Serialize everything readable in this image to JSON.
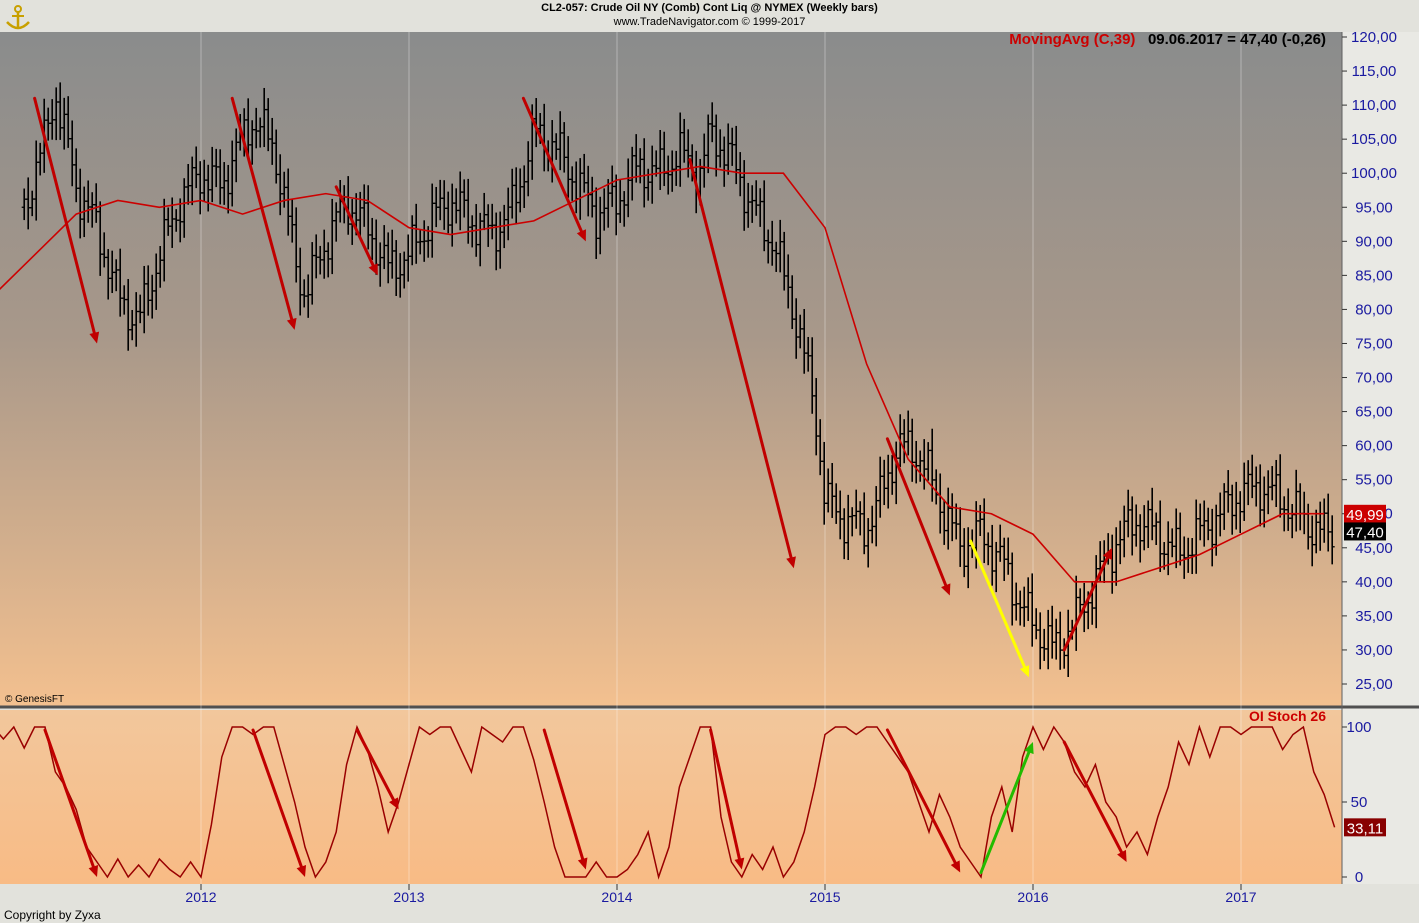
{
  "header": {
    "line1": "CL2-057:  Crude Oil NY (Comb) Cont Liq @ NYMEX  (Weekly bars)",
    "line2": "www.TradeNavigator.com © 1999-2017"
  },
  "indicator": {
    "name": "MovingAvg (C,39)",
    "reading": "09.06.2017 = 47,40 (-0,26)"
  },
  "oscillator": {
    "name": "OI Stoch 26"
  },
  "footer": {
    "copyright": "Copyright by Zyxa",
    "source": "© GenesisFT"
  },
  "colors": {
    "bar": "#000000",
    "moving_avg": "#cc0000",
    "arrow_down": "#c00000",
    "arrow_yellow": "#ffff00",
    "arrow_green": "#22bb00",
    "oscillator": "#990000",
    "axis_text": "#1a1aa0"
  },
  "chart_data": [
    {
      "type": "bar",
      "title": "Crude Oil NY (Comb) Cont Liq @ NYMEX (Weekly bars)",
      "x_ticks": [
        "2012",
        "2013",
        "2014",
        "2015",
        "2016",
        "2017"
      ],
      "y_ticks": [
        "120,00",
        "115,00",
        "110,00",
        "105,00",
        "100,00",
        "95,00",
        "90,00",
        "85,00",
        "80,00",
        "75,00",
        "70,00",
        "65,00",
        "60,00",
        "55,00",
        "50,00",
        "45,00",
        "40,00",
        "35,00",
        "30,00",
        "25,00"
      ],
      "ylim": [
        23,
        122
      ],
      "last_close": "47,40",
      "moving_avg_last": "49,99",
      "close_series": {
        "name": "Weekly close",
        "x": [
          2011.15,
          2011.25,
          2011.3,
          2011.4,
          2011.5,
          2011.6,
          2011.7,
          2011.8,
          2011.9,
          2012.0,
          2012.1,
          2012.15,
          2012.25,
          2012.35,
          2012.45,
          2012.5,
          2012.6,
          2012.7,
          2012.8,
          2012.9,
          2013.0,
          2013.1,
          2013.2,
          2013.3,
          2013.4,
          2013.5,
          2013.6,
          2013.7,
          2013.8,
          2013.9,
          2014.0,
          2014.1,
          2014.2,
          2014.3,
          2014.4,
          2014.45,
          2014.55,
          2014.65,
          2014.75,
          2014.85,
          2014.95,
          2015.0,
          2015.1,
          2015.2,
          2015.25,
          2015.35,
          2015.45,
          2015.55,
          2015.65,
          2015.75,
          2015.85,
          2015.95,
          2016.05,
          2016.1,
          2016.2,
          2016.3,
          2016.4,
          2016.5,
          2016.6,
          2016.7,
          2016.8,
          2016.9,
          2017.0,
          2017.1,
          2017.2,
          2017.3,
          2017.4,
          2017.45
        ],
        "y": [
          95,
          105,
          112,
          98,
          92,
          82,
          78,
          88,
          96,
          100,
          98,
          102,
          108,
          104,
          88,
          82,
          90,
          96,
          92,
          86,
          88,
          93,
          96,
          93,
          91,
          95,
          106,
          104,
          99,
          94,
          96,
          101,
          100,
          103,
          100,
          106,
          102,
          95,
          90,
          80,
          66,
          52,
          49,
          48,
          51,
          60,
          59,
          52,
          45,
          47,
          43,
          36,
          32,
          30,
          34,
          40,
          46,
          49,
          47,
          44,
          47,
          50,
          53,
          54,
          52,
          49,
          47,
          47.4
        ]
      },
      "moving_avg": {
        "name": "MovingAvg (C,39)",
        "x": [
          2011.0,
          2011.2,
          2011.4,
          2011.6,
          2011.8,
          2012.0,
          2012.2,
          2012.4,
          2012.6,
          2012.8,
          2013.0,
          2013.2,
          2013.4,
          2013.6,
          2013.8,
          2014.0,
          2014.2,
          2014.4,
          2014.6,
          2014.8,
          2015.0,
          2015.2,
          2015.4,
          2015.6,
          2015.8,
          2016.0,
          2016.2,
          2016.4,
          2016.6,
          2016.8,
          2017.0,
          2017.2,
          2017.4
        ],
        "y": [
          82,
          88,
          94,
          96,
          95,
          96,
          94,
          96,
          97,
          96,
          92,
          91,
          92,
          93,
          96,
          99,
          100,
          101,
          100,
          100,
          92,
          72,
          58,
          51,
          50,
          47,
          40,
          40,
          42,
          44,
          47,
          50,
          50
        ]
      },
      "arrows": [
        {
          "color": "red",
          "from": [
            2011.2,
            111
          ],
          "to": [
            2011.5,
            75
          ]
        },
        {
          "color": "red",
          "from": [
            2012.15,
            111
          ],
          "to": [
            2012.45,
            77
          ]
        },
        {
          "color": "red",
          "from": [
            2012.65,
            98
          ],
          "to": [
            2012.85,
            85
          ]
        },
        {
          "color": "red",
          "from": [
            2013.55,
            111
          ],
          "to": [
            2013.85,
            90
          ]
        },
        {
          "color": "red",
          "from": [
            2014.35,
            102
          ],
          "to": [
            2014.85,
            42
          ]
        },
        {
          "color": "red",
          "from": [
            2015.3,
            61
          ],
          "to": [
            2015.6,
            38
          ]
        },
        {
          "color": "yellow",
          "from": [
            2015.7,
            46
          ],
          "to": [
            2015.98,
            26
          ]
        },
        {
          "color": "red",
          "from": [
            2016.15,
            30
          ],
          "to": [
            2016.38,
            45
          ]
        }
      ]
    },
    {
      "type": "line",
      "title": "OI Stoch 26",
      "y_ticks": [
        "100",
        "50",
        "0"
      ],
      "ylim": [
        0,
        100
      ],
      "last_value": "33,11",
      "series": {
        "name": "OI Stoch 26",
        "x": [
          2011.0,
          2011.05,
          2011.1,
          2011.15,
          2011.2,
          2011.25,
          2011.3,
          2011.35,
          2011.4,
          2011.45,
          2011.5,
          2011.55,
          2011.6,
          2011.65,
          2011.7,
          2011.75,
          2011.8,
          2011.85,
          2011.9,
          2011.95,
          2012.0,
          2012.05,
          2012.1,
          2012.15,
          2012.2,
          2012.25,
          2012.3,
          2012.35,
          2012.4,
          2012.45,
          2012.5,
          2012.55,
          2012.6,
          2012.65,
          2012.7,
          2012.75,
          2012.8,
          2012.85,
          2012.9,
          2012.95,
          2013.0,
          2013.05,
          2013.1,
          2013.15,
          2013.2,
          2013.25,
          2013.3,
          2013.35,
          2013.4,
          2013.45,
          2013.5,
          2013.55,
          2013.6,
          2013.65,
          2013.7,
          2013.75,
          2013.8,
          2013.85,
          2013.9,
          2013.95,
          2014.0,
          2014.05,
          2014.1,
          2014.15,
          2014.2,
          2014.25,
          2014.3,
          2014.35,
          2014.4,
          2014.45,
          2014.5,
          2014.55,
          2014.6,
          2014.65,
          2014.7,
          2014.75,
          2014.8,
          2014.85,
          2014.9,
          2014.95,
          2015.0,
          2015.05,
          2015.1,
          2015.15,
          2015.2,
          2015.25,
          2015.3,
          2015.35,
          2015.4,
          2015.45,
          2015.5,
          2015.55,
          2015.6,
          2015.65,
          2015.7,
          2015.75,
          2015.8,
          2015.85,
          2015.9,
          2015.95,
          2016.0,
          2016.05,
          2016.1,
          2016.15,
          2016.2,
          2016.25,
          2016.3,
          2016.35,
          2016.4,
          2016.45,
          2016.5,
          2016.55,
          2016.6,
          2016.65,
          2016.7,
          2016.75,
          2016.8,
          2016.85,
          2016.9,
          2016.95,
          2017.0,
          2017.05,
          2017.1,
          2017.15,
          2017.2,
          2017.25,
          2017.3,
          2017.35,
          2017.4,
          2017.45
        ],
        "y": [
          100,
          92,
          100,
          86,
          100,
          100,
          70,
          60,
          45,
          20,
          10,
          0,
          12,
          0,
          8,
          0,
          12,
          5,
          0,
          10,
          0,
          35,
          80,
          100,
          100,
          95,
          100,
          100,
          75,
          50,
          20,
          0,
          10,
          30,
          75,
          100,
          85,
          60,
          30,
          50,
          75,
          100,
          95,
          100,
          100,
          85,
          70,
          100,
          95,
          90,
          100,
          100,
          78,
          50,
          20,
          0,
          0,
          0,
          10,
          0,
          0,
          5,
          15,
          30,
          0,
          20,
          60,
          80,
          100,
          100,
          40,
          10,
          0,
          15,
          5,
          20,
          0,
          10,
          30,
          60,
          95,
          100,
          100,
          95,
          100,
          100,
          90,
          80,
          70,
          50,
          30,
          55,
          40,
          20,
          10,
          0,
          40,
          60,
          30,
          80,
          100,
          85,
          100,
          90,
          70,
          60,
          75,
          50,
          40,
          20,
          30,
          15,
          40,
          60,
          90,
          75,
          100,
          80,
          100,
          100,
          95,
          100,
          100,
          100,
          85,
          95,
          100,
          70,
          55,
          33.11
        ]
      },
      "arrows": [
        {
          "color": "red",
          "from": [
            2011.25,
            98
          ],
          "to": [
            2011.5,
            0
          ]
        },
        {
          "color": "red",
          "from": [
            2012.25,
            98
          ],
          "to": [
            2012.5,
            0
          ]
        },
        {
          "color": "red",
          "from": [
            2012.75,
            98
          ],
          "to": [
            2012.95,
            45
          ]
        },
        {
          "color": "red",
          "from": [
            2013.65,
            98
          ],
          "to": [
            2013.85,
            5
          ]
        },
        {
          "color": "red",
          "from": [
            2014.45,
            98
          ],
          "to": [
            2014.6,
            5
          ]
        },
        {
          "color": "red",
          "from": [
            2015.3,
            98
          ],
          "to": [
            2015.65,
            3
          ]
        },
        {
          "color": "green",
          "from": [
            2015.75,
            3
          ],
          "to": [
            2016.0,
            90
          ]
        },
        {
          "color": "red",
          "from": [
            2016.15,
            90
          ],
          "to": [
            2016.45,
            10
          ]
        }
      ]
    }
  ]
}
